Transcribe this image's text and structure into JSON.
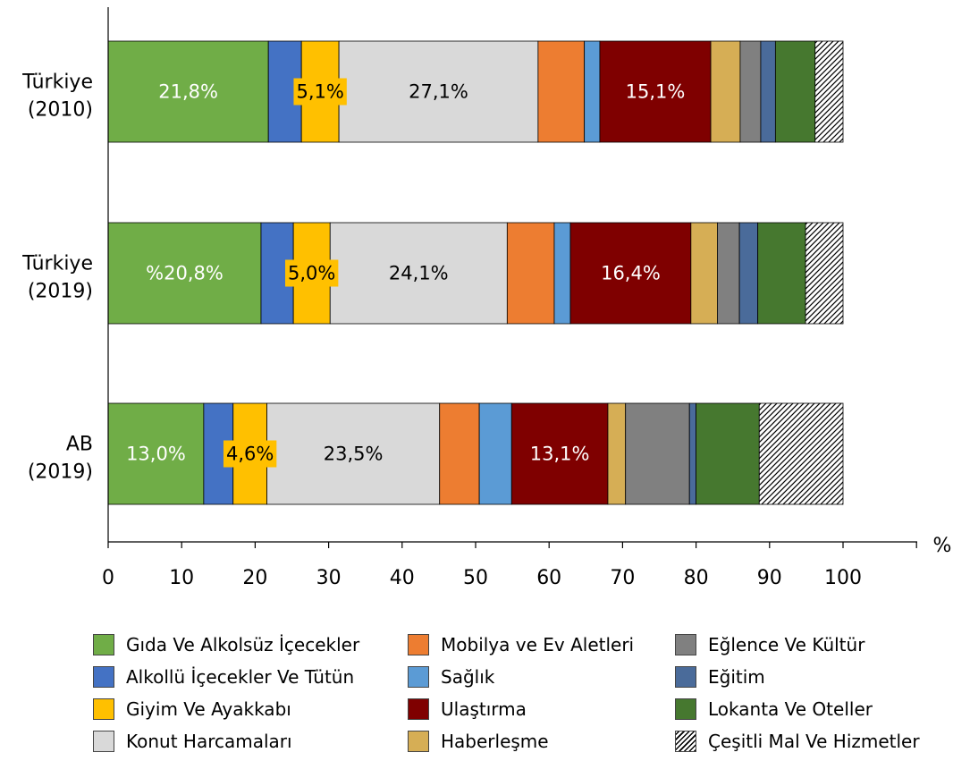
{
  "chart_data": {
    "type": "bar",
    "orientation": "horizontal",
    "stacked": true,
    "x_unit": "%",
    "xlim": [
      0,
      100
    ],
    "xticks": [
      0,
      10,
      20,
      30,
      40,
      50,
      60,
      70,
      80,
      90,
      100
    ],
    "bars": [
      {
        "label": [
          "Türkiye",
          "(2010)"
        ]
      },
      {
        "label": [
          "Türkiye",
          "(2019)"
        ]
      },
      {
        "label": [
          "AB",
          "(2019)"
        ]
      }
    ],
    "series": [
      {
        "name": "Gıda Ve Alkolsüz İçecekler",
        "color": "#70ad47",
        "values": [
          21.8,
          20.8,
          13.0
        ],
        "labels": [
          "21,8%",
          "%20,8%",
          "13,0%"
        ],
        "label_color": "#ffffff"
      },
      {
        "name": "Alkollü İçecekler Ve Tütün",
        "color": "#4472c4",
        "values": [
          4.5,
          4.4,
          4.0
        ]
      },
      {
        "name": "Giyim Ve Ayakkabı",
        "color": "#ffc000",
        "values": [
          5.1,
          5.0,
          4.6
        ],
        "labels": [
          "5,1%",
          "5,0%",
          "4,6%"
        ],
        "label_color": "#000000"
      },
      {
        "name": "Konut Harcamaları",
        "color": "#d9d9d9",
        "values": [
          27.1,
          24.1,
          23.5
        ],
        "labels": [
          "27,1%",
          "24,1%",
          "23,5%"
        ],
        "label_color": "#000000"
      },
      {
        "name": "Mobilya ve Ev Aletleri",
        "color": "#ed7d31",
        "values": [
          6.3,
          6.4,
          5.4
        ]
      },
      {
        "name": "Sağlık",
        "color": "#5b9bd5",
        "values": [
          2.1,
          2.2,
          4.4
        ]
      },
      {
        "name": "Ulaştırma",
        "color": "#7f0000",
        "values": [
          15.1,
          16.4,
          13.1
        ],
        "labels": [
          "15,1%",
          "16,4%",
          "13,1%"
        ],
        "label_color": "#ffffff"
      },
      {
        "name": "Haberleşme",
        "color": "#d6ae55",
        "values": [
          4.0,
          3.6,
          2.4
        ]
      },
      {
        "name": "Eğlence Ve Kültür",
        "color": "#808080",
        "values": [
          2.8,
          3.0,
          8.7
        ]
      },
      {
        "name": "Eğitim",
        "color": "#4a6b9a",
        "values": [
          2.0,
          2.5,
          0.9
        ]
      },
      {
        "name": "Lokanta Ve Oteller",
        "color": "#46782f",
        "values": [
          5.4,
          6.5,
          8.6
        ]
      },
      {
        "name": "Çeşitli Mal Ve Hizmetler",
        "color": "hatched",
        "values": [
          3.8,
          5.1,
          11.4
        ]
      }
    ],
    "legend": "bottom",
    "grid": false
  }
}
